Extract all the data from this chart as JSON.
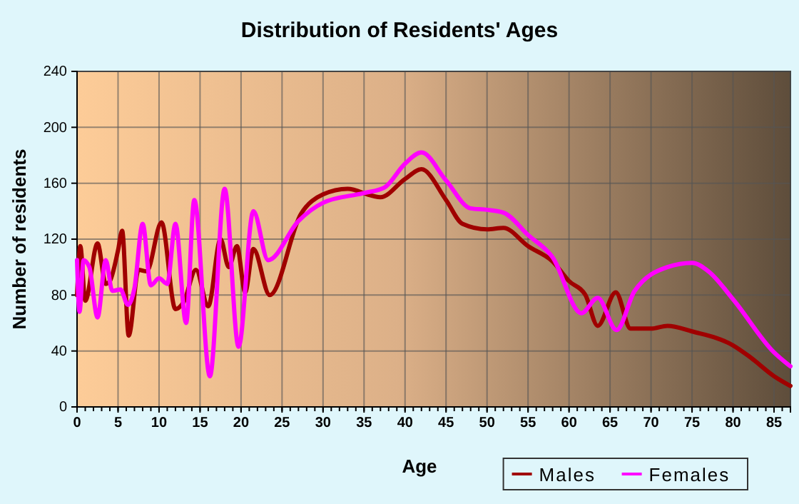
{
  "chart_data": {
    "type": "line",
    "title": "Distribution of Residents' Ages",
    "xlabel": "Age",
    "ylabel": "Number of residents",
    "xlim": [
      0,
      87
    ],
    "xticks": [
      0,
      5,
      10,
      15,
      20,
      25,
      30,
      35,
      40,
      45,
      50,
      55,
      60,
      65,
      70,
      75,
      80,
      85
    ],
    "ylim": [
      0,
      240
    ],
    "yticks": [
      0,
      40,
      80,
      120,
      160,
      200,
      240
    ],
    "grid": true,
    "legend": "bottom right",
    "series": [
      {
        "name": "Males",
        "color": "#a00000",
        "x": [
          0,
          0.4,
          1,
          2.5,
          3.5,
          4,
          5,
          5.5,
          6.3,
          7.5,
          8.5,
          10.3,
          12,
          13,
          14.5,
          16,
          17.5,
          18.5,
          19.5,
          20.5,
          21.5,
          23.5,
          27.3,
          30,
          33,
          36,
          37,
          40,
          42,
          45,
          47,
          50,
          52,
          55,
          58,
          60,
          62,
          63.5,
          65.7,
          67.5,
          70,
          72,
          75,
          80,
          82,
          85,
          87
        ],
        "values": [
          80,
          115,
          76,
          117,
          88,
          90,
          112,
          126,
          51,
          98,
          97,
          132,
          70,
          75,
          98,
          72,
          120,
          100,
          115,
          82,
          113,
          80,
          138,
          152,
          156,
          151,
          150,
          163,
          170,
          148,
          131,
          127,
          128,
          115,
          104,
          90,
          80,
          58,
          82,
          56,
          56,
          58,
          54,
          44,
          36,
          22,
          15
        ]
      },
      {
        "name": "Females",
        "color": "#ff00ff",
        "x": [
          0,
          0.3,
          0.8,
          1.5,
          2.5,
          3.5,
          4.3,
          5.3,
          6.2,
          7,
          8,
          9,
          10,
          11,
          12,
          13.3,
          14.3,
          16.2,
          18,
          19.7,
          21.5,
          23.3,
          27,
          30,
          35,
          37.5,
          40,
          42,
          45,
          48,
          50,
          52,
          55,
          58,
          61.5,
          63.5,
          65.8,
          68,
          72,
          75,
          77,
          80,
          85,
          87
        ],
        "values": [
          105,
          68,
          105,
          100,
          64,
          105,
          83,
          84,
          73,
          85,
          131,
          87,
          92,
          88,
          131,
          60,
          148,
          22,
          156,
          43,
          140,
          105,
          133,
          146,
          153,
          157,
          174,
          182,
          162,
          142,
          141,
          139,
          123,
          107,
          67,
          78,
          55,
          83,
          100,
          103,
          97,
          77,
          39,
          29
        ]
      }
    ]
  }
}
